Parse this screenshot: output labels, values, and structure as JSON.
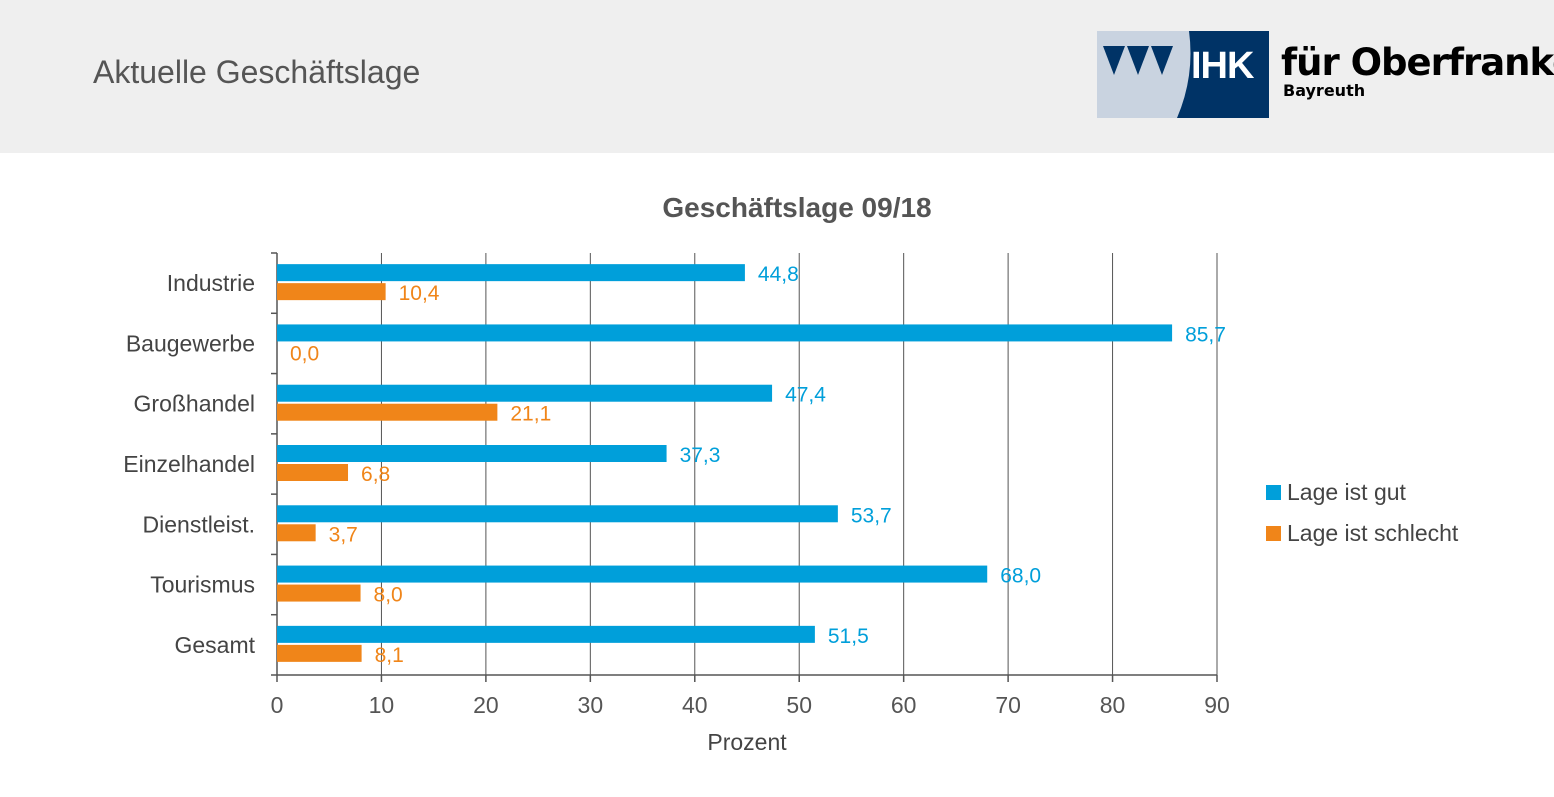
{
  "header": {
    "title": "Aktuelle Geschäftslage",
    "logo": {
      "abbr": "IHK",
      "org": "für Oberfranken",
      "city": "Bayreuth",
      "colors": {
        "dark": "#003366",
        "light": "#c9d3e0"
      }
    }
  },
  "chart_data": {
    "type": "bar",
    "orientation": "horizontal",
    "title": "Geschäftslage 09/18",
    "xlabel": "Prozent",
    "ylabel": "",
    "xlim": [
      0,
      90
    ],
    "xticks": [
      "0",
      "10",
      "20",
      "30",
      "40",
      "50",
      "60",
      "70",
      "80",
      "90"
    ],
    "grid": "vertical",
    "legend_position": "right",
    "categories": [
      "Industrie",
      "Baugewerbe",
      "Großhandel",
      "Einzelhandel",
      "Dienstleist.",
      "Tourismus",
      "Gesamt"
    ],
    "series": [
      {
        "name": "Lage ist gut",
        "color": "#009fda",
        "values": [
          44.8,
          85.7,
          47.4,
          37.3,
          53.7,
          68.0,
          51.5
        ],
        "labels": [
          "44,8",
          "85,7",
          "47,4",
          "37,3",
          "53,7",
          "68,0",
          "51,5"
        ]
      },
      {
        "name": "Lage ist schlecht",
        "color": "#f08519",
        "values": [
          10.4,
          0.0,
          21.1,
          6.8,
          3.7,
          8.0,
          8.1
        ],
        "labels": [
          "10,4",
          "0,0",
          "21,1",
          "6,8",
          "3,7",
          "8,0",
          "8,1"
        ]
      }
    ]
  }
}
